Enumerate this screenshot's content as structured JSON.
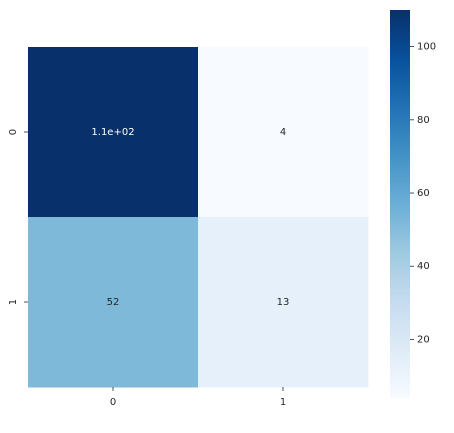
{
  "chart_data": {
    "type": "heatmap",
    "x_categories": [
      "0",
      "1"
    ],
    "y_categories": [
      "0",
      "1"
    ],
    "values": [
      [
        110,
        4
      ],
      [
        52,
        13
      ]
    ],
    "value_labels": [
      [
        "1.1e+02",
        "4"
      ],
      [
        "52",
        "13"
      ]
    ],
    "colormap": "Blues",
    "clim": [
      4,
      110
    ],
    "cticks": [
      20,
      40,
      60,
      80,
      100
    ]
  }
}
